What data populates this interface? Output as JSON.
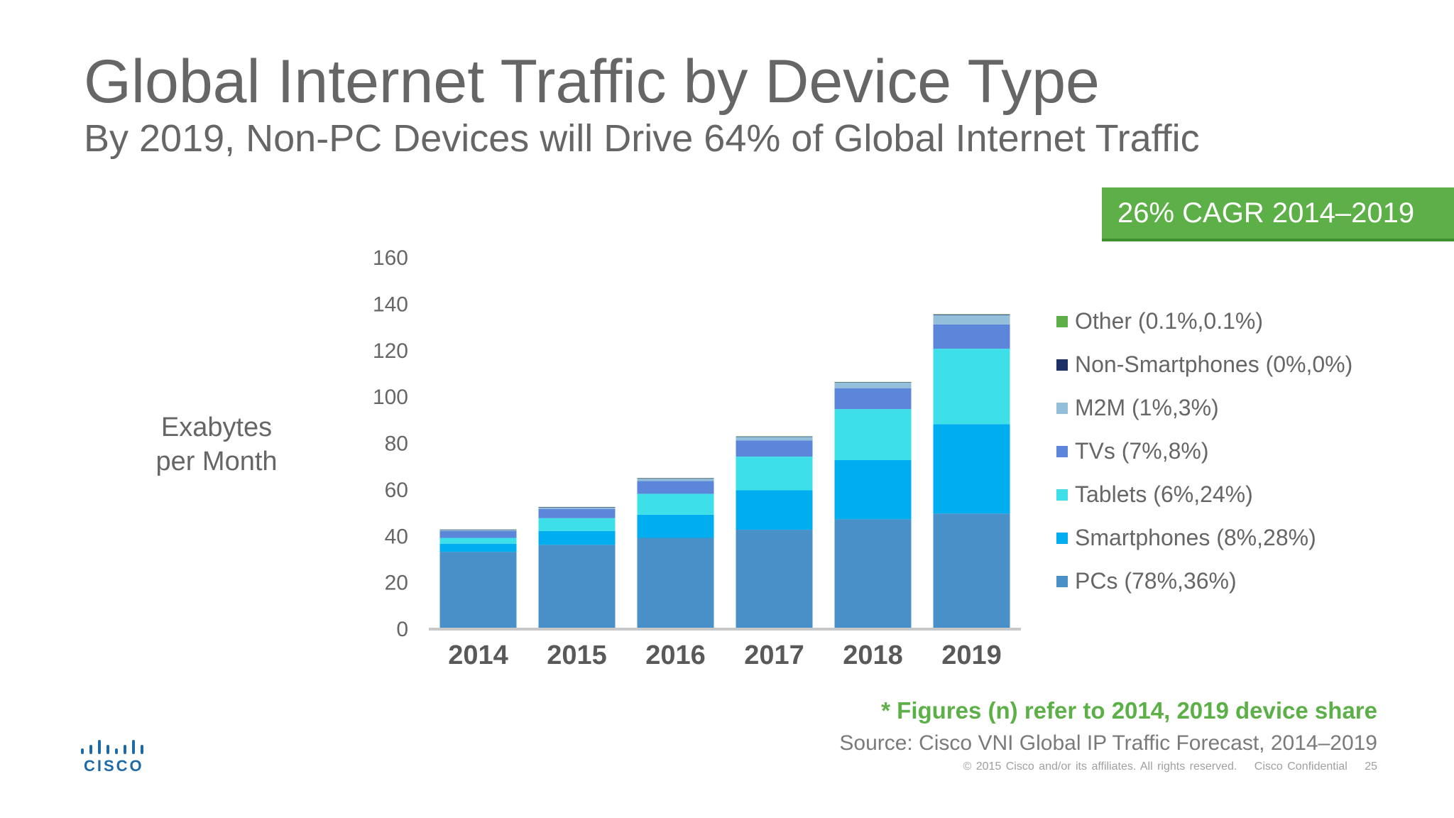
{
  "slide": {
    "title": "Global Internet Traffic by Device Type",
    "subtitle": "By 2019, Non-PC Devices will Drive 64% of Global Internet Traffic",
    "cagr_badge": "26% CAGR 2014–2019",
    "footnote": "* Figures (n) refer to 2014, 2019 device share",
    "source": "Source: Cisco VNI Global IP Traffic Forecast, 2014–2019",
    "copyright": "© 2015  Cisco and/or its affiliates. All rights reserved.",
    "confidential": "Cisco Confidential",
    "page_number": "25",
    "logo_text": "CISCO",
    "logo_icon": "cisco-bridge-logo",
    "badge_color": "#5cb047"
  },
  "chart_data": {
    "type": "bar",
    "stacked": true,
    "ylabel": "Exabytes per Month",
    "ylabel_lines": [
      "Exabytes",
      "per Month"
    ],
    "xlabel": "",
    "categories": [
      "2014",
      "2015",
      "2016",
      "2017",
      "2018",
      "2019"
    ],
    "ylim": [
      0,
      160
    ],
    "yticks": [
      0,
      20,
      40,
      60,
      80,
      100,
      120,
      140,
      160
    ],
    "grid": false,
    "legend_position": "right",
    "series": [
      {
        "name": "PCs (78%,36%)",
        "color": "#4a90c8",
        "values": [
          33,
          36,
          39,
          42.5,
          47,
          49.5
        ]
      },
      {
        "name": "Smartphones (8%,28%)",
        "color": "#00aeef",
        "values": [
          3.5,
          6,
          10,
          17,
          25.5,
          38.5
        ]
      },
      {
        "name": "Tablets (6%,24%)",
        "color": "#3ddfe9",
        "values": [
          2.5,
          5.5,
          9,
          14.5,
          22,
          32.5
        ]
      },
      {
        "name": "TVs (7%,8%)",
        "color": "#5b86d9",
        "values": [
          3,
          4,
          5.5,
          7,
          9,
          10.5
        ]
      },
      {
        "name": "M2M (1%,3%)",
        "color": "#93bfdb",
        "values": [
          0.4,
          0.6,
          1.0,
          1.5,
          2.4,
          4.0
        ]
      },
      {
        "name": "Non-Smartphones (0%,0%)",
        "color": "#1c2f66",
        "values": [
          0.2,
          0.2,
          0.2,
          0.2,
          0.2,
          0.3
        ]
      },
      {
        "name": "Other (0.1%,0.1%)",
        "color": "#5cb047",
        "values": [
          0.05,
          0.05,
          0.05,
          0.1,
          0.1,
          0.1
        ]
      }
    ]
  }
}
